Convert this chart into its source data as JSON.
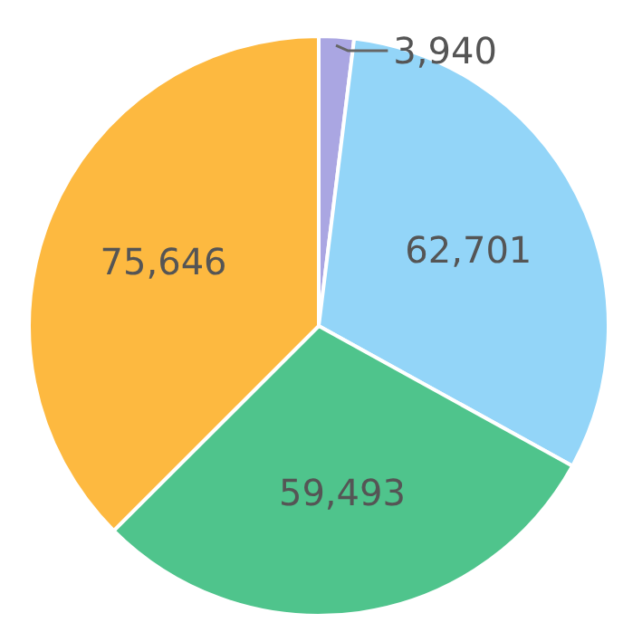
{
  "chart_data": {
    "type": "pie",
    "categories": [
      null,
      null,
      null,
      null
    ],
    "values": [
      3940,
      62701,
      59493,
      75646
    ],
    "colors": [
      "#aaa6e2",
      "#93d5f8",
      "#4fc48c",
      "#fdb940"
    ],
    "value_labels": [
      "3,940",
      "62,701",
      "59,493",
      "75,646"
    ]
  }
}
